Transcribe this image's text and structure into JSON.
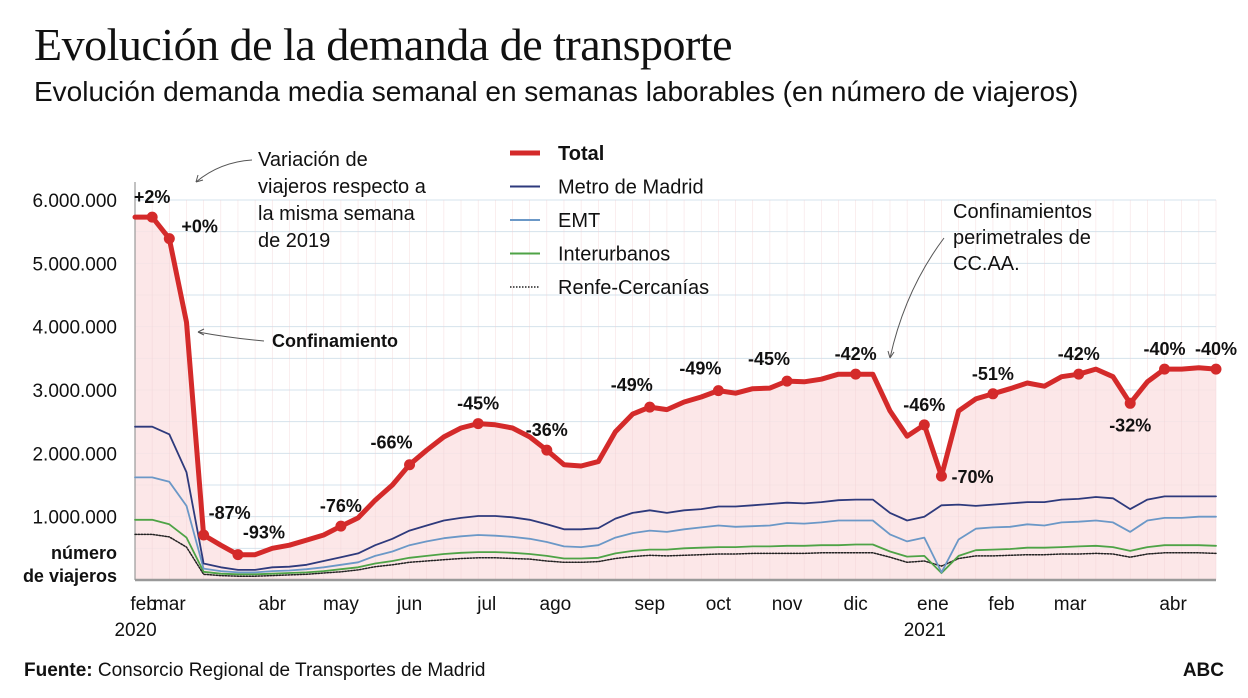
{
  "title": "Evolución de la demanda de transporte",
  "subtitle": "Evolución demanda media semanal en semanas laborables (en número de viajeros)",
  "source_label": "Fuente:",
  "source_text": "Consorcio Regional de Transportes de Madrid",
  "brand": "ABC",
  "annotations": {
    "variation_note": [
      "Variación de",
      "viajeros respecto a",
      "la misma semana",
      "de 2019"
    ],
    "lockdown": "Confinamiento",
    "perimeter": [
      "Confinamientos",
      "perimetrales de",
      "CC.AA."
    ],
    "y_unit": [
      "número",
      "de viajeros"
    ]
  },
  "chart_data": {
    "type": "line",
    "title": "Evolución de la demanda de transporte",
    "subtitle": "Evolución demanda media semanal en semanas laborables (en número de viajeros)",
    "xlabel": "",
    "ylabel": "número de viajeros",
    "ylim": [
      0,
      6000000
    ],
    "yticks": [
      {
        "value": 1000000,
        "label": "1.000.000"
      },
      {
        "value": 2000000,
        "label": "2.000.000"
      },
      {
        "value": 3000000,
        "label": "3.000.000"
      },
      {
        "value": 4000000,
        "label": "4.000.000"
      },
      {
        "value": 5000000,
        "label": "5.000.000"
      },
      {
        "value": 6000000,
        "label": "6.000.000"
      }
    ],
    "grid": true,
    "legend_position": "top-center",
    "weeks": 64,
    "xticks": [
      {
        "week": 0.5,
        "label": "feb",
        "sub": "2020"
      },
      {
        "week": 2,
        "label": "mar"
      },
      {
        "week": 8,
        "label": "abr"
      },
      {
        "week": 12,
        "label": "may"
      },
      {
        "week": 16,
        "label": "jun"
      },
      {
        "week": 20.5,
        "label": "jul"
      },
      {
        "week": 24.5,
        "label": "ago"
      },
      {
        "week": 30,
        "label": "sep"
      },
      {
        "week": 34,
        "label": "oct"
      },
      {
        "week": 38,
        "label": "nov"
      },
      {
        "week": 42,
        "label": "dic"
      },
      {
        "week": 46.5,
        "label": "ene",
        "sub": "2021"
      },
      {
        "week": 50.5,
        "label": "feb"
      },
      {
        "week": 54.5,
        "label": "mar"
      },
      {
        "week": 60.5,
        "label": "abr"
      }
    ],
    "series": [
      {
        "name": "Total",
        "color": "#d42a2a",
        "values": [
          5.73,
          5.73,
          5.39,
          4.07,
          0.71,
          0.55,
          0.4,
          0.4,
          0.5,
          0.55,
          0.63,
          0.71,
          0.85,
          0.98,
          1.26,
          1.5,
          1.82,
          2.05,
          2.26,
          2.4,
          2.47,
          2.45,
          2.4,
          2.26,
          2.05,
          1.82,
          1.8,
          1.87,
          2.34,
          2.62,
          2.73,
          2.69,
          2.81,
          2.89,
          2.99,
          2.95,
          3.02,
          3.03,
          3.14,
          3.13,
          3.17,
          3.25,
          3.25,
          3.25,
          2.67,
          2.27,
          2.45,
          1.64,
          2.67,
          2.86,
          2.94,
          3.02,
          3.11,
          3.06,
          3.21,
          3.25,
          3.33,
          3.21,
          2.79,
          3.13,
          3.33,
          3.33,
          3.35,
          3.33
        ]
      },
      {
        "name": "Metro de Madrid",
        "color": "#2e3a7c",
        "values": [
          2.42,
          2.42,
          2.3,
          1.7,
          0.26,
          0.2,
          0.16,
          0.16,
          0.2,
          0.21,
          0.24,
          0.3,
          0.36,
          0.42,
          0.55,
          0.65,
          0.78,
          0.86,
          0.94,
          0.98,
          1.01,
          1.01,
          0.99,
          0.95,
          0.88,
          0.8,
          0.8,
          0.82,
          0.97,
          1.06,
          1.1,
          1.06,
          1.1,
          1.12,
          1.16,
          1.16,
          1.18,
          1.2,
          1.22,
          1.21,
          1.23,
          1.26,
          1.27,
          1.27,
          1.06,
          0.94,
          1.0,
          1.18,
          1.19,
          1.17,
          1.19,
          1.21,
          1.23,
          1.23,
          1.27,
          1.28,
          1.31,
          1.29,
          1.12,
          1.27,
          1.32,
          1.32,
          1.32,
          1.32
        ]
      },
      {
        "name": "EMT",
        "color": "#6b98c7",
        "values": [
          1.62,
          1.62,
          1.55,
          1.17,
          0.18,
          0.14,
          0.12,
          0.12,
          0.14,
          0.15,
          0.17,
          0.2,
          0.24,
          0.28,
          0.38,
          0.45,
          0.55,
          0.61,
          0.66,
          0.69,
          0.71,
          0.7,
          0.68,
          0.65,
          0.6,
          0.53,
          0.52,
          0.55,
          0.67,
          0.74,
          0.78,
          0.76,
          0.8,
          0.83,
          0.86,
          0.84,
          0.85,
          0.86,
          0.9,
          0.89,
          0.91,
          0.94,
          0.94,
          0.94,
          0.72,
          0.61,
          0.67,
          0.12,
          0.64,
          0.81,
          0.83,
          0.84,
          0.88,
          0.86,
          0.91,
          0.92,
          0.94,
          0.91,
          0.76,
          0.94,
          0.98,
          0.98,
          1.0,
          1.0
        ]
      },
      {
        "name": "Interurbanos",
        "color": "#4ea346",
        "values": [
          0.95,
          0.95,
          0.88,
          0.67,
          0.13,
          0.1,
          0.09,
          0.09,
          0.1,
          0.11,
          0.12,
          0.14,
          0.17,
          0.2,
          0.26,
          0.3,
          0.35,
          0.38,
          0.41,
          0.43,
          0.44,
          0.44,
          0.43,
          0.41,
          0.38,
          0.34,
          0.34,
          0.35,
          0.42,
          0.46,
          0.48,
          0.48,
          0.5,
          0.51,
          0.52,
          0.52,
          0.53,
          0.53,
          0.54,
          0.54,
          0.55,
          0.55,
          0.56,
          0.56,
          0.45,
          0.37,
          0.38,
          0.11,
          0.38,
          0.47,
          0.48,
          0.49,
          0.51,
          0.51,
          0.52,
          0.53,
          0.54,
          0.52,
          0.46,
          0.52,
          0.55,
          0.55,
          0.55,
          0.54
        ]
      },
      {
        "name": "Renfe-Cercanías",
        "color": "#222222",
        "dashed": true,
        "values": [
          0.72,
          0.72,
          0.68,
          0.52,
          0.09,
          0.07,
          0.06,
          0.06,
          0.07,
          0.08,
          0.09,
          0.11,
          0.13,
          0.16,
          0.21,
          0.24,
          0.28,
          0.3,
          0.32,
          0.34,
          0.35,
          0.35,
          0.34,
          0.33,
          0.3,
          0.28,
          0.28,
          0.29,
          0.34,
          0.37,
          0.39,
          0.38,
          0.39,
          0.4,
          0.41,
          0.41,
          0.42,
          0.42,
          0.42,
          0.42,
          0.43,
          0.43,
          0.43,
          0.43,
          0.36,
          0.28,
          0.3,
          0.22,
          0.34,
          0.38,
          0.38,
          0.39,
          0.4,
          0.4,
          0.41,
          0.41,
          0.42,
          0.41,
          0.36,
          0.41,
          0.43,
          0.43,
          0.43,
          0.42
        ]
      }
    ],
    "value_unit": "millones de viajeros",
    "markers": [
      {
        "week": 1,
        "label": "+2%",
        "pos": "above"
      },
      {
        "week": 2,
        "label": "+0%",
        "pos": "right"
      },
      {
        "week": 4,
        "label": "-87%",
        "pos": "above-right"
      },
      {
        "week": 6,
        "label": "-93%",
        "pos": "above-right"
      },
      {
        "week": 12,
        "label": "-76%",
        "pos": "above"
      },
      {
        "week": 16,
        "label": "-66%",
        "pos": "above-left"
      },
      {
        "week": 20,
        "label": "-45%",
        "pos": "above"
      },
      {
        "week": 24,
        "label": "-36%",
        "pos": "above"
      },
      {
        "week": 30,
        "label": "-49%",
        "pos": "above-left"
      },
      {
        "week": 34,
        "label": "-49%",
        "pos": "above-left"
      },
      {
        "week": 38,
        "label": "-45%",
        "pos": "above-left"
      },
      {
        "week": 42,
        "label": "-42%",
        "pos": "above"
      },
      {
        "week": 46,
        "label": "-46%",
        "pos": "above"
      },
      {
        "week": 47,
        "label": "-70%",
        "pos": "right"
      },
      {
        "week": 50,
        "label": "-51%",
        "pos": "above"
      },
      {
        "week": 55,
        "label": "-42%",
        "pos": "above"
      },
      {
        "week": 58,
        "label": "-32%",
        "pos": "below"
      },
      {
        "week": 60,
        "label": "-40%",
        "pos": "above"
      },
      {
        "week": 63,
        "label": "-40%",
        "pos": "above"
      }
    ]
  }
}
